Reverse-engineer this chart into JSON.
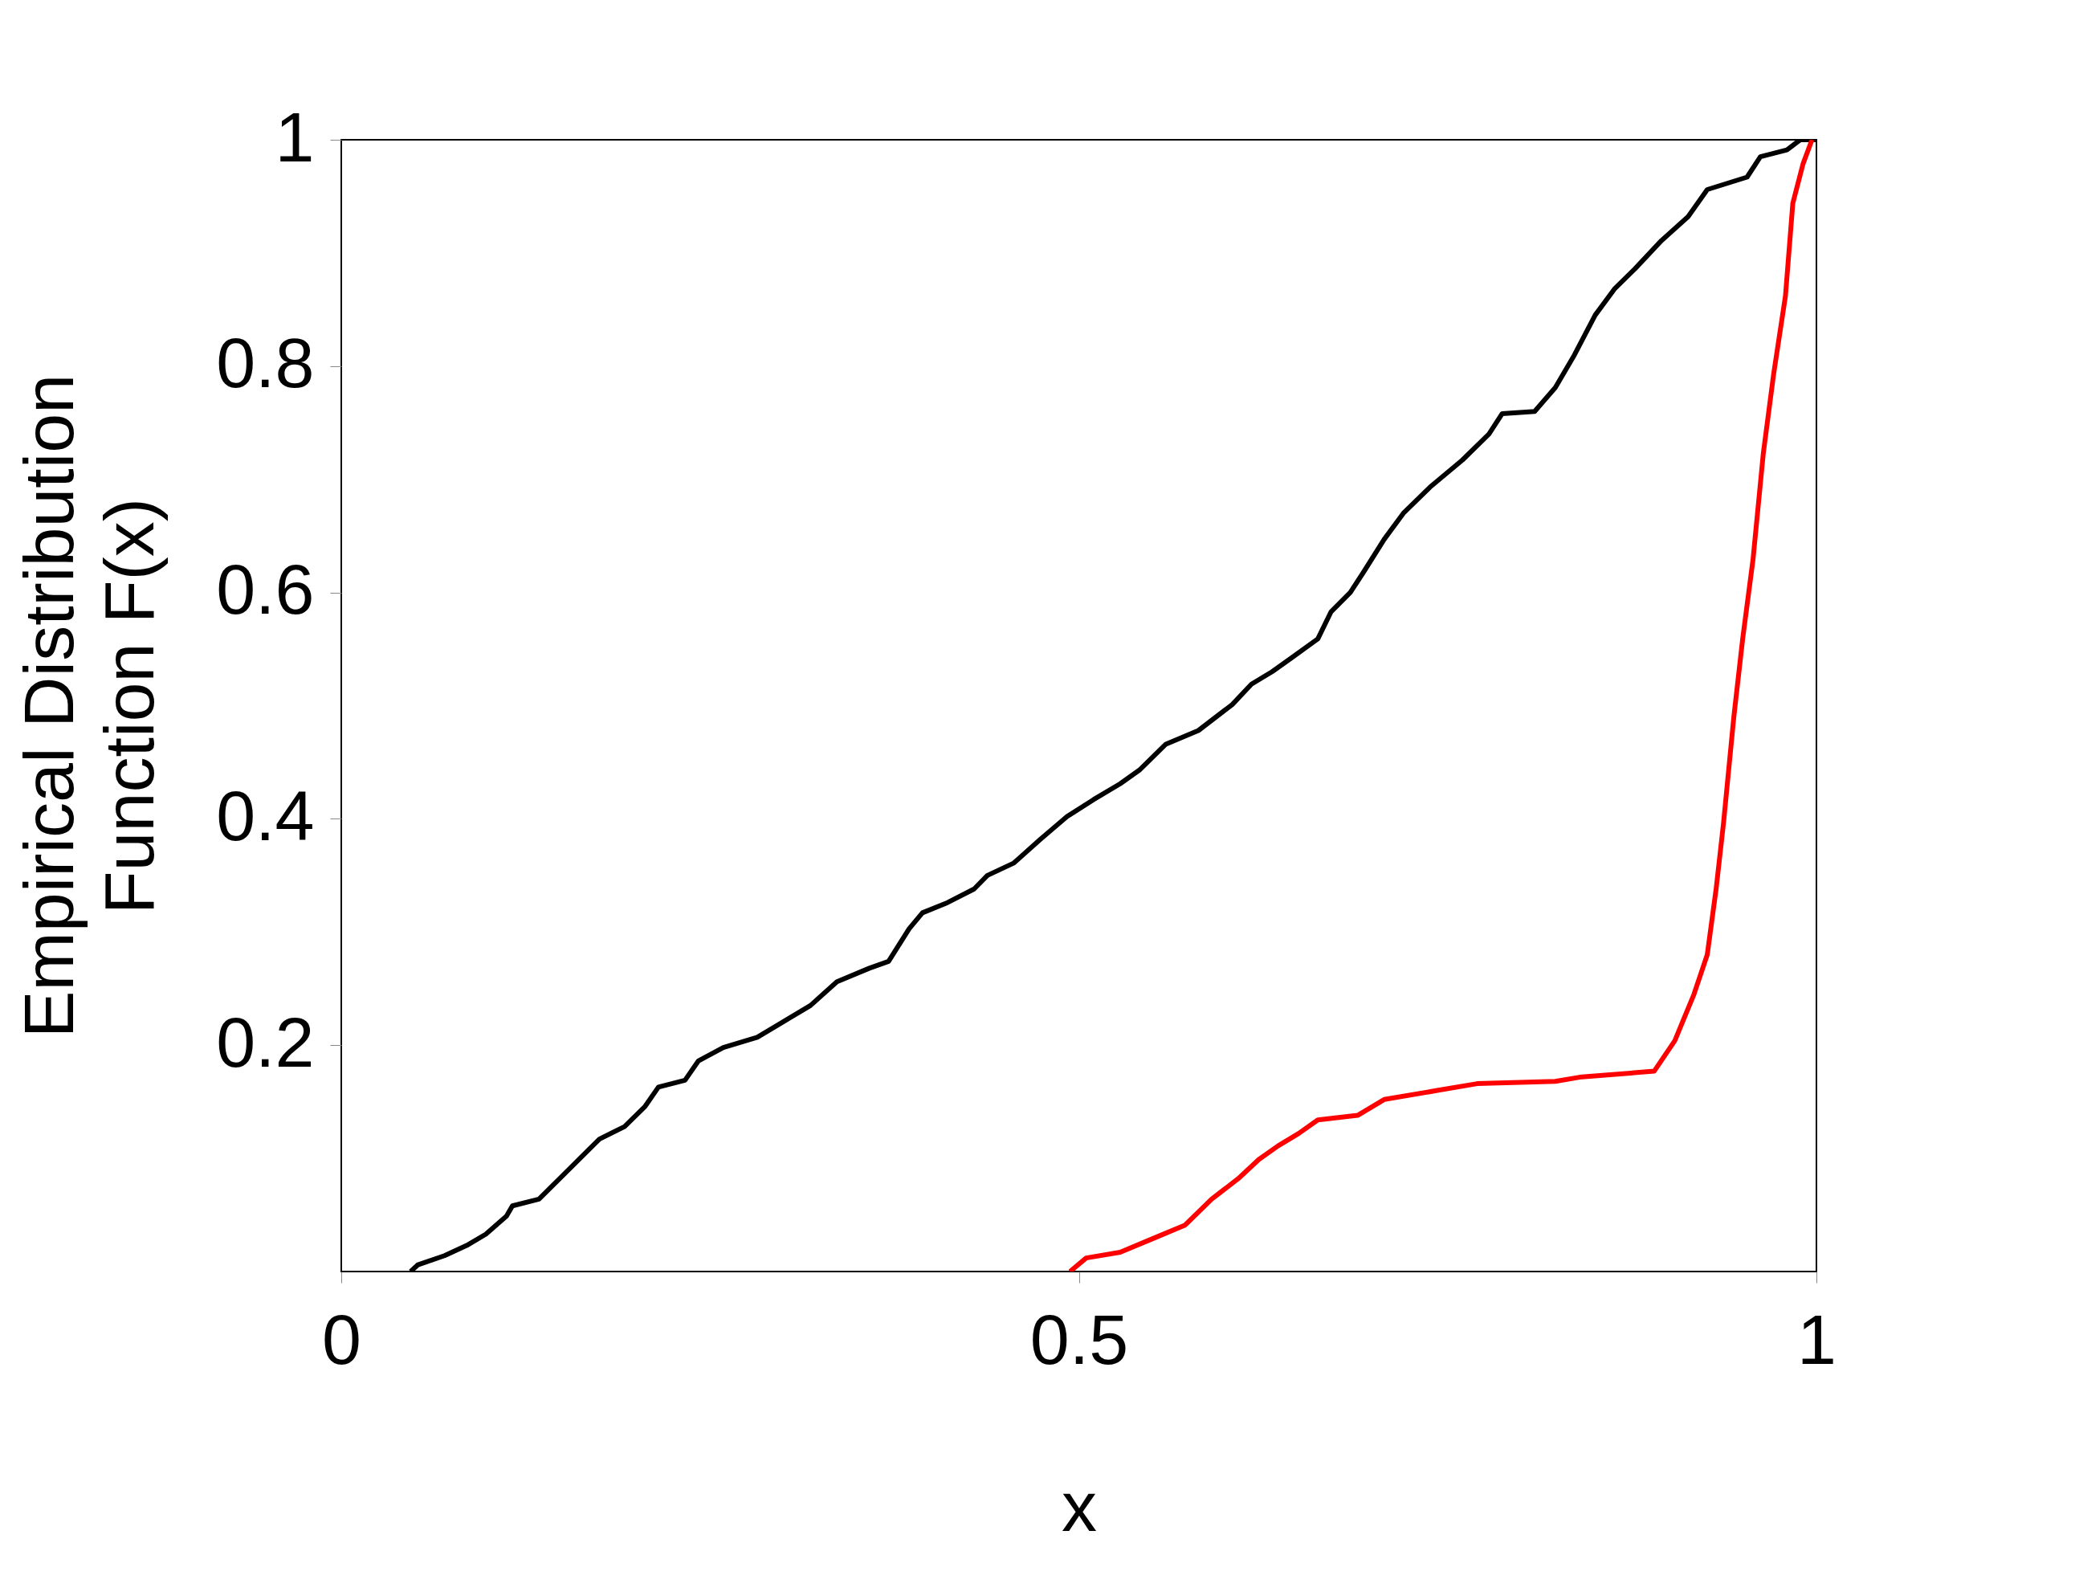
{
  "chart_data": {
    "type": "line",
    "xlabel": "x",
    "ylabel": "Empirical Distribution\nFunction F(x)",
    "xlim": [
      0,
      1
    ],
    "xticks": [
      {
        "value": 0,
        "label": "0"
      },
      0.5,
      {
        "value": 1,
        "label": "1"
      }
    ],
    "ylim": [
      0,
      1
    ],
    "yticks": [
      0.2,
      0.4,
      0.6,
      0.8,
      {
        "value": 1,
        "label": "1"
      }
    ],
    "grid": false,
    "legend": false,
    "line_style": "solid",
    "series": [
      {
        "color": "#000000",
        "x": [
          0.047,
          0.052,
          0.07,
          0.085,
          0.098,
          0.112,
          0.116,
          0.134,
          0.148,
          0.161,
          0.175,
          0.192,
          0.206,
          0.215,
          0.233,
          0.242,
          0.259,
          0.282,
          0.3,
          0.318,
          0.336,
          0.358,
          0.371,
          0.385,
          0.394,
          0.411,
          0.429,
          0.438,
          0.456,
          0.474,
          0.492,
          0.51,
          0.528,
          0.541,
          0.559,
          0.581,
          0.604,
          0.617,
          0.631,
          0.644,
          0.662,
          0.671,
          0.684,
          0.693,
          0.707,
          0.72,
          0.738,
          0.76,
          0.778,
          0.787,
          0.809,
          0.823,
          0.836,
          0.85,
          0.863,
          0.877,
          0.895,
          0.913,
          0.926,
          0.953,
          0.962,
          0.98,
          0.989,
          1
        ],
        "values": [
          0,
          0.006,
          0.014,
          0.023,
          0.033,
          0.049,
          0.058,
          0.064,
          0.082,
          0.099,
          0.117,
          0.128,
          0.146,
          0.163,
          0.169,
          0.186,
          0.198,
          0.207,
          0.221,
          0.235,
          0.256,
          0.268,
          0.274,
          0.303,
          0.317,
          0.326,
          0.338,
          0.35,
          0.361,
          0.382,
          0.402,
          0.417,
          0.431,
          0.443,
          0.466,
          0.478,
          0.501,
          0.519,
          0.53,
          0.542,
          0.559,
          0.583,
          0.6,
          0.618,
          0.647,
          0.67,
          0.693,
          0.717,
          0.74,
          0.758,
          0.76,
          0.781,
          0.81,
          0.845,
          0.868,
          0.886,
          0.911,
          0.932,
          0.956,
          0.967,
          0.985,
          0.991,
          1,
          1
        ]
      },
      {
        "color": "#ff0000",
        "x": [
          0.494,
          0.505,
          0.528,
          0.55,
          0.572,
          0.59,
          0.608,
          0.622,
          0.635,
          0.649,
          0.662,
          0.689,
          0.707,
          0.743,
          0.77,
          0.823,
          0.841,
          0.89,
          0.904,
          0.917,
          0.926,
          0.932,
          0.937,
          0.944,
          0.95,
          0.957,
          0.964,
          0.971,
          0.979,
          0.984,
          0.991,
          0.997
        ],
        "values": [
          0,
          0.012,
          0.017,
          0.029,
          0.041,
          0.064,
          0.082,
          0.099,
          0.111,
          0.122,
          0.134,
          0.138,
          0.152,
          0.16,
          0.166,
          0.168,
          0.172,
          0.177,
          0.204,
          0.245,
          0.28,
          0.338,
          0.396,
          0.49,
          0.559,
          0.629,
          0.723,
          0.793,
          0.862,
          0.944,
          0.979,
          1
        ]
      }
    ]
  }
}
